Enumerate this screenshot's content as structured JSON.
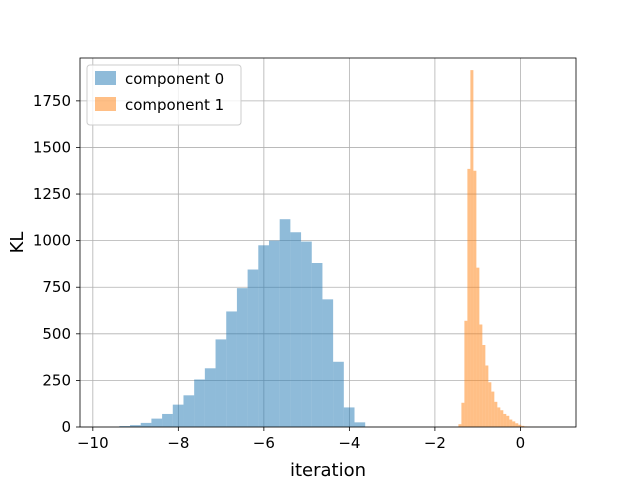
{
  "chart_data": {
    "type": "bar",
    "title": "",
    "xlabel": "iteration",
    "ylabel": "KL",
    "xlim": [
      -10.3,
      1.3
    ],
    "ylim": [
      0,
      1980
    ],
    "xticks": [
      -10,
      -8,
      -6,
      -4,
      -2,
      0
    ],
    "xtick_labels": [
      "−10",
      "−8",
      "−6",
      "−4",
      "−2",
      "0"
    ],
    "yticks": [
      0,
      250,
      500,
      750,
      1000,
      1250,
      1500,
      1750
    ],
    "ytick_labels": [
      "0",
      "250",
      "500",
      "750",
      "1000",
      "1250",
      "1500",
      "1750"
    ],
    "grid": true,
    "legend_position": "top-left",
    "series": [
      {
        "name": "component 0",
        "color": "#1f77b4",
        "opacity": 0.5,
        "bin_edges": [
          -9.38,
          -9.13,
          -8.88,
          -8.63,
          -8.38,
          -8.13,
          -7.88,
          -7.63,
          -7.38,
          -7.13,
          -6.88,
          -6.63,
          -6.38,
          -6.13,
          -5.88,
          -5.63,
          -5.38,
          -5.13,
          -4.88,
          -4.63,
          -4.38,
          -4.13,
          -3.88,
          -3.63,
          -3.38
        ],
        "counts": [
          5,
          10,
          22,
          45,
          70,
          120,
          170,
          255,
          315,
          470,
          620,
          745,
          845,
          975,
          1000,
          1115,
          1045,
          995,
          880,
          685,
          350,
          105,
          25,
          0
        ]
      },
      {
        "name": "component 1",
        "color": "#ff7f0e",
        "opacity": 0.5,
        "bin_edges": [
          -1.45,
          -1.38,
          -1.31,
          -1.24,
          -1.17,
          -1.1,
          -1.03,
          -0.96,
          -0.89,
          -0.82,
          -0.75,
          -0.68,
          -0.61,
          -0.54,
          -0.47,
          -0.4,
          -0.33,
          -0.26,
          -0.19,
          -0.12,
          -0.05,
          0.02,
          0.09,
          0.16,
          0.23,
          0.3,
          0.37,
          0.44
        ],
        "counts": [
          15,
          130,
          570,
          1385,
          1915,
          1375,
          855,
          550,
          440,
          330,
          240,
          190,
          135,
          105,
          90,
          70,
          60,
          40,
          30,
          20,
          12,
          6,
          3,
          2,
          1,
          1,
          1
        ]
      }
    ]
  }
}
